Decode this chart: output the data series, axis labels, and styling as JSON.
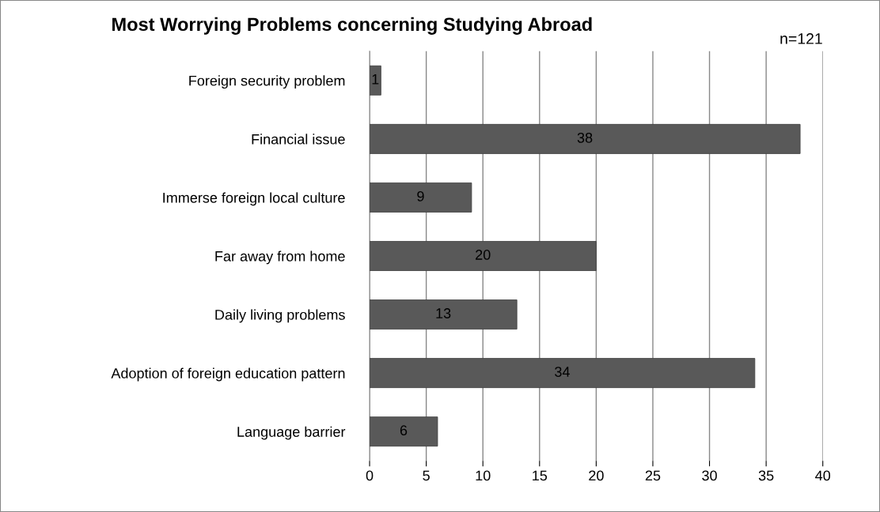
{
  "chart_data": {
    "type": "bar",
    "orientation": "horizontal",
    "title": "Most Worrying Problems concerning Studying Abroad",
    "categories": [
      "Foreign security problem",
      "Financial issue",
      "Immerse foreign local culture",
      "Far away from home",
      "Daily living problems",
      "Adoption of foreign education pattern",
      "Language barrier"
    ],
    "values": [
      1,
      38,
      9,
      20,
      13,
      34,
      6
    ],
    "color": "#595959",
    "xlim": [
      0,
      40
    ],
    "xticks": [
      0,
      5,
      10,
      15,
      20,
      25,
      30,
      35,
      40
    ],
    "grid": "x",
    "legend": false,
    "data_labels": true,
    "annotations": [
      "n=121"
    ]
  }
}
